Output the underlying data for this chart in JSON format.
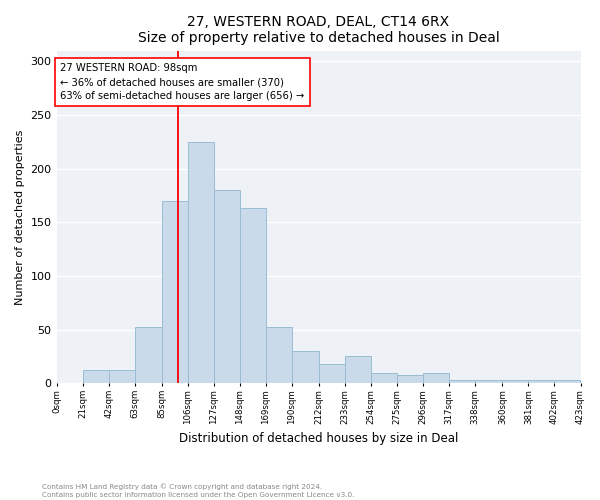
{
  "title": "27, WESTERN ROAD, DEAL, CT14 6RX",
  "subtitle": "Size of property relative to detached houses in Deal",
  "xlabel": "Distribution of detached houses by size in Deal",
  "ylabel": "Number of detached properties",
  "bar_color": "#c9daea",
  "bar_edgecolor": "#9bbdd4",
  "bin_edges": [
    0,
    21,
    42,
    63,
    85,
    106,
    127,
    148,
    169,
    190,
    212,
    233,
    254,
    275,
    296,
    317,
    338,
    360,
    381,
    402,
    423
  ],
  "bar_heights": [
    0,
    12,
    12,
    52,
    170,
    225,
    180,
    163,
    52,
    30,
    18,
    25,
    10,
    8,
    10,
    3,
    3,
    3,
    3,
    3
  ],
  "tick_labels": [
    "0sqm",
    "21sqm",
    "42sqm",
    "63sqm",
    "85sqm",
    "106sqm",
    "127sqm",
    "148sqm",
    "169sqm",
    "190sqm",
    "212sqm",
    "233sqm",
    "254sqm",
    "275sqm",
    "296sqm",
    "317sqm",
    "338sqm",
    "360sqm",
    "381sqm",
    "402sqm",
    "423sqm"
  ],
  "red_line_x": 98,
  "ylim": [
    0,
    310
  ],
  "yticks": [
    0,
    50,
    100,
    150,
    200,
    250,
    300
  ],
  "annotation_title": "27 WESTERN ROAD: 98sqm",
  "annotation_line1": "← 36% of detached houses are smaller (370)",
  "annotation_line2": "63% of semi-detached houses are larger (656) →",
  "bg_color": "#eef2f7",
  "footer_line1": "Contains HM Land Registry data © Crown copyright and database right 2024.",
  "footer_line2": "Contains public sector information licensed under the Open Government Licence v3.0."
}
